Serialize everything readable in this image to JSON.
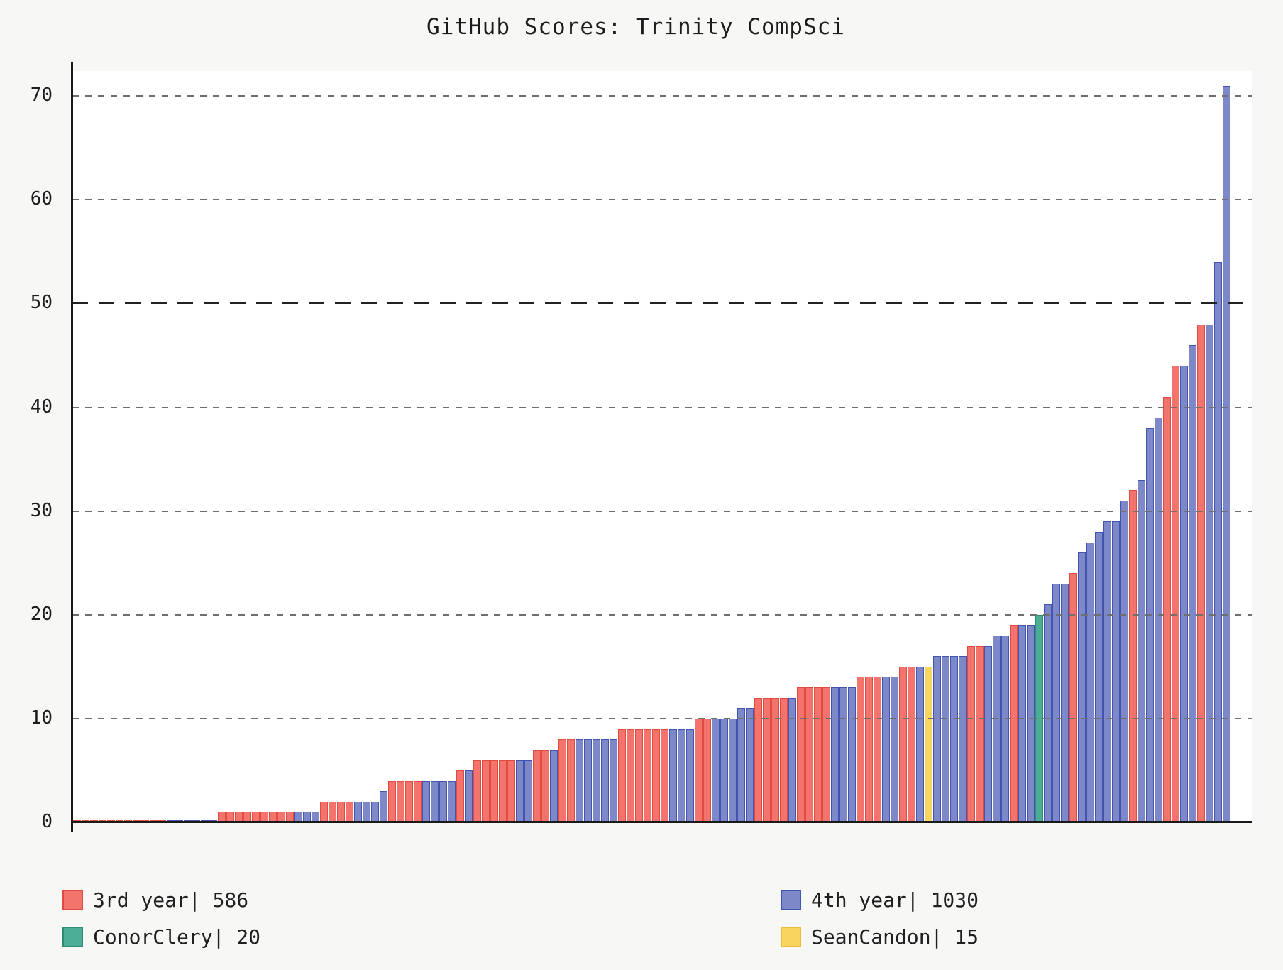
{
  "figure": {
    "background": "#f7f7f6",
    "plot_background": "#ffffff",
    "axis_color": "#1a1a1a"
  },
  "chart_data": {
    "type": "bar",
    "title": "GitHub Scores: Trinity CompSci",
    "xlabel": "",
    "ylabel": "",
    "ylim": [
      0,
      72.4
    ],
    "yticks": [
      0,
      10,
      20,
      30,
      40,
      50,
      60,
      70
    ],
    "grid": {
      "style": "dashed",
      "color": "#6f6f6f",
      "highlight_tick": 50,
      "highlight_color": "#222222",
      "drawn_above_bars": true
    },
    "legend": {
      "position": "bottom",
      "entries": [
        {
          "key": "y3",
          "label": "3rd year| 586",
          "total": 586,
          "fill": "#F2746C",
          "edge": "#E04A3F"
        },
        {
          "key": "y4",
          "label": "4th year| 1030",
          "total": 1030,
          "fill": "#7D88C8",
          "edge": "#4253B0"
        },
        {
          "key": "conor",
          "label": "ConorClery| 20",
          "total": 20,
          "fill": "#4BAE94",
          "edge": "#2E8E74"
        },
        {
          "key": "sean",
          "label": "SeanCandon| 15",
          "total": 15,
          "fill": "#F8D55E",
          "edge": "#EDBE3C"
        }
      ]
    },
    "bars": [
      [
        0,
        "y3"
      ],
      [
        0,
        "y3"
      ],
      [
        0,
        "y3"
      ],
      [
        0,
        "y3"
      ],
      [
        0,
        "y3"
      ],
      [
        0,
        "y3"
      ],
      [
        0,
        "y3"
      ],
      [
        0,
        "y3"
      ],
      [
        0,
        "y3"
      ],
      [
        0,
        "y3"
      ],
      [
        0,
        "y3"
      ],
      [
        0,
        "y4"
      ],
      [
        0,
        "y4"
      ],
      [
        0,
        "y4"
      ],
      [
        0,
        "y4"
      ],
      [
        0,
        "y4"
      ],
      [
        0,
        "y4"
      ],
      [
        1,
        "y3"
      ],
      [
        1,
        "y3"
      ],
      [
        1,
        "y3"
      ],
      [
        1,
        "y3"
      ],
      [
        1,
        "y3"
      ],
      [
        1,
        "y3"
      ],
      [
        1,
        "y3"
      ],
      [
        1,
        "y3"
      ],
      [
        1,
        "y3"
      ],
      [
        1,
        "y4"
      ],
      [
        1,
        "y4"
      ],
      [
        1,
        "y4"
      ],
      [
        2,
        "y3"
      ],
      [
        2,
        "y3"
      ],
      [
        2,
        "y3"
      ],
      [
        2,
        "y3"
      ],
      [
        2,
        "y4"
      ],
      [
        2,
        "y4"
      ],
      [
        2,
        "y4"
      ],
      [
        3,
        "y4"
      ],
      [
        4,
        "y3"
      ],
      [
        4,
        "y3"
      ],
      [
        4,
        "y3"
      ],
      [
        4,
        "y3"
      ],
      [
        4,
        "y4"
      ],
      [
        4,
        "y4"
      ],
      [
        4,
        "y4"
      ],
      [
        4,
        "y4"
      ],
      [
        5,
        "y3"
      ],
      [
        5,
        "y4"
      ],
      [
        6,
        "y3"
      ],
      [
        6,
        "y3"
      ],
      [
        6,
        "y3"
      ],
      [
        6,
        "y3"
      ],
      [
        6,
        "y3"
      ],
      [
        6,
        "y4"
      ],
      [
        6,
        "y4"
      ],
      [
        7,
        "y3"
      ],
      [
        7,
        "y3"
      ],
      [
        7,
        "y4"
      ],
      [
        8,
        "y3"
      ],
      [
        8,
        "y3"
      ],
      [
        8,
        "y4"
      ],
      [
        8,
        "y4"
      ],
      [
        8,
        "y4"
      ],
      [
        8,
        "y4"
      ],
      [
        8,
        "y4"
      ],
      [
        9,
        "y3"
      ],
      [
        9,
        "y3"
      ],
      [
        9,
        "y3"
      ],
      [
        9,
        "y3"
      ],
      [
        9,
        "y3"
      ],
      [
        9,
        "y3"
      ],
      [
        9,
        "y4"
      ],
      [
        9,
        "y4"
      ],
      [
        9,
        "y4"
      ],
      [
        10,
        "y3"
      ],
      [
        10,
        "y3"
      ],
      [
        10,
        "y4"
      ],
      [
        10,
        "y4"
      ],
      [
        10,
        "y4"
      ],
      [
        11,
        "y4"
      ],
      [
        11,
        "y4"
      ],
      [
        12,
        "y3"
      ],
      [
        12,
        "y3"
      ],
      [
        12,
        "y3"
      ],
      [
        12,
        "y3"
      ],
      [
        12,
        "y4"
      ],
      [
        13,
        "y3"
      ],
      [
        13,
        "y3"
      ],
      [
        13,
        "y3"
      ],
      [
        13,
        "y3"
      ],
      [
        13,
        "y4"
      ],
      [
        13,
        "y4"
      ],
      [
        13,
        "y4"
      ],
      [
        14,
        "y3"
      ],
      [
        14,
        "y3"
      ],
      [
        14,
        "y3"
      ],
      [
        14,
        "y4"
      ],
      [
        14,
        "y4"
      ],
      [
        15,
        "y3"
      ],
      [
        15,
        "y3"
      ],
      [
        15,
        "y4"
      ],
      [
        15,
        "sean"
      ],
      [
        16,
        "y4"
      ],
      [
        16,
        "y4"
      ],
      [
        16,
        "y4"
      ],
      [
        16,
        "y4"
      ],
      [
        17,
        "y3"
      ],
      [
        17,
        "y3"
      ],
      [
        17,
        "y4"
      ],
      [
        18,
        "y4"
      ],
      [
        18,
        "y4"
      ],
      [
        19,
        "y3"
      ],
      [
        19,
        "y4"
      ],
      [
        19,
        "y4"
      ],
      [
        20,
        "conor"
      ],
      [
        21,
        "y4"
      ],
      [
        23,
        "y4"
      ],
      [
        23,
        "y4"
      ],
      [
        24,
        "y3"
      ],
      [
        26,
        "y4"
      ],
      [
        27,
        "y4"
      ],
      [
        28,
        "y4"
      ],
      [
        29,
        "y4"
      ],
      [
        29,
        "y4"
      ],
      [
        31,
        "y4"
      ],
      [
        32,
        "y3"
      ],
      [
        33,
        "y4"
      ],
      [
        38,
        "y4"
      ],
      [
        39,
        "y4"
      ],
      [
        41,
        "y3"
      ],
      [
        44,
        "y3"
      ],
      [
        44,
        "y4"
      ],
      [
        46,
        "y4"
      ],
      [
        48,
        "y3"
      ],
      [
        48,
        "y4"
      ],
      [
        54,
        "y4"
      ],
      [
        71,
        "y4"
      ]
    ]
  }
}
